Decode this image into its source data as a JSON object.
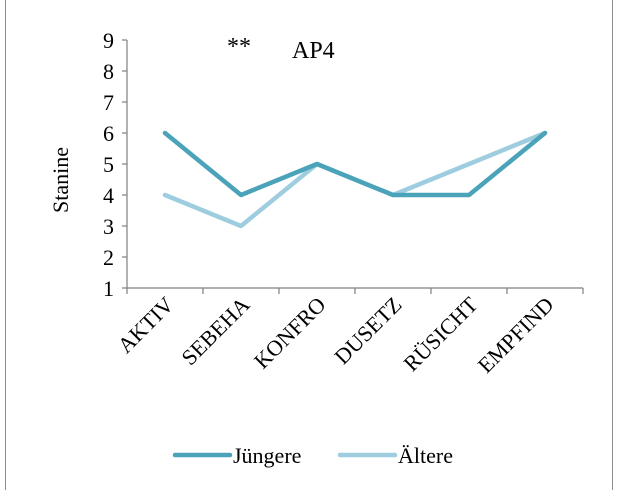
{
  "chart_data": {
    "type": "line",
    "title": "AP4",
    "significance_marker": "**",
    "xlabel": "",
    "ylabel": "Stanine",
    "ylim": [
      1,
      9
    ],
    "yticks": [
      "1",
      "2",
      "3",
      "4",
      "5",
      "6",
      "7",
      "8",
      "9"
    ],
    "categories": [
      "AKTIV",
      "SEBEHA",
      "KONFRO",
      "DUSETZ",
      "RÜSICHT",
      "EMPFIND"
    ],
    "series": [
      {
        "name": "Jüngere",
        "values": [
          6,
          4,
          5,
          4,
          4,
          6
        ],
        "color": "#4aa3b8"
      },
      {
        "name": "Ältere",
        "values": [
          4,
          3,
          5,
          4,
          5,
          6
        ],
        "color": "#9fcde0"
      }
    ],
    "grid": false,
    "legend_position": "bottom"
  }
}
